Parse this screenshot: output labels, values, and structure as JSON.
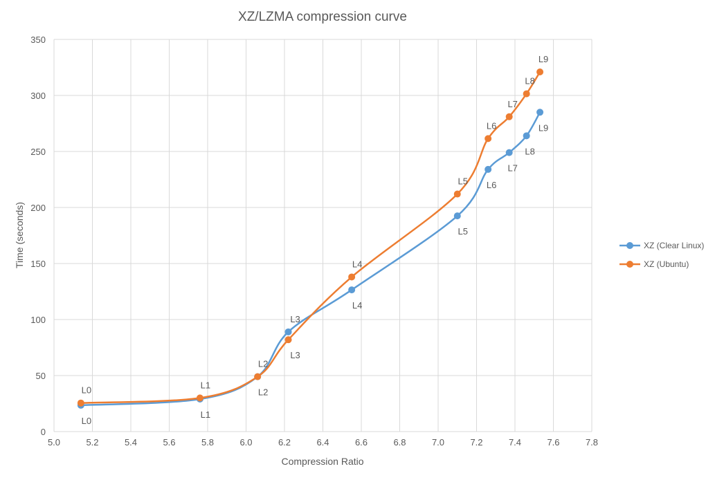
{
  "chart_data": {
    "type": "line",
    "title": "XZ/LZMA compression curve",
    "xlabel": "Compression Ratio",
    "ylabel": "Time (seconds)",
    "xlim": [
      5.0,
      7.8
    ],
    "ylim": [
      0,
      350
    ],
    "xticks": [
      "5.0",
      "5.2",
      "5.4",
      "5.6",
      "5.8",
      "6.0",
      "6.2",
      "6.4",
      "6.6",
      "6.8",
      "7.0",
      "7.2",
      "7.4",
      "7.6",
      "7.8"
    ],
    "yticks": [
      "0",
      "50",
      "100",
      "150",
      "200",
      "250",
      "300",
      "350"
    ],
    "grid": true,
    "smooth": true,
    "legend_position": "right",
    "series": [
      {
        "name": "XZ (Clear Linux)",
        "color": "#5B9BD5",
        "labels": [
          "L0",
          "L1",
          "L2",
          "L3",
          "L4",
          "L5",
          "L6",
          "L7",
          "L8",
          "L9"
        ],
        "x": [
          5.14,
          5.76,
          6.06,
          6.22,
          6.55,
          7.1,
          7.26,
          7.37,
          7.46,
          7.53
        ],
        "y": [
          23.5,
          29,
          49,
          89,
          126.5,
          192.5,
          234,
          249,
          264,
          285
        ]
      },
      {
        "name": "XZ (Ubuntu)",
        "color": "#ED7D31",
        "labels": [
          "L0",
          "L1",
          "L2",
          "L3",
          "L4",
          "L5",
          "L6",
          "L7",
          "L8",
          "L9"
        ],
        "x": [
          5.14,
          5.76,
          6.06,
          6.22,
          6.55,
          7.1,
          7.26,
          7.37,
          7.46,
          7.53
        ],
        "y": [
          25.5,
          30,
          49,
          82,
          138,
          212,
          261.5,
          281,
          301.5,
          321
        ]
      }
    ]
  }
}
